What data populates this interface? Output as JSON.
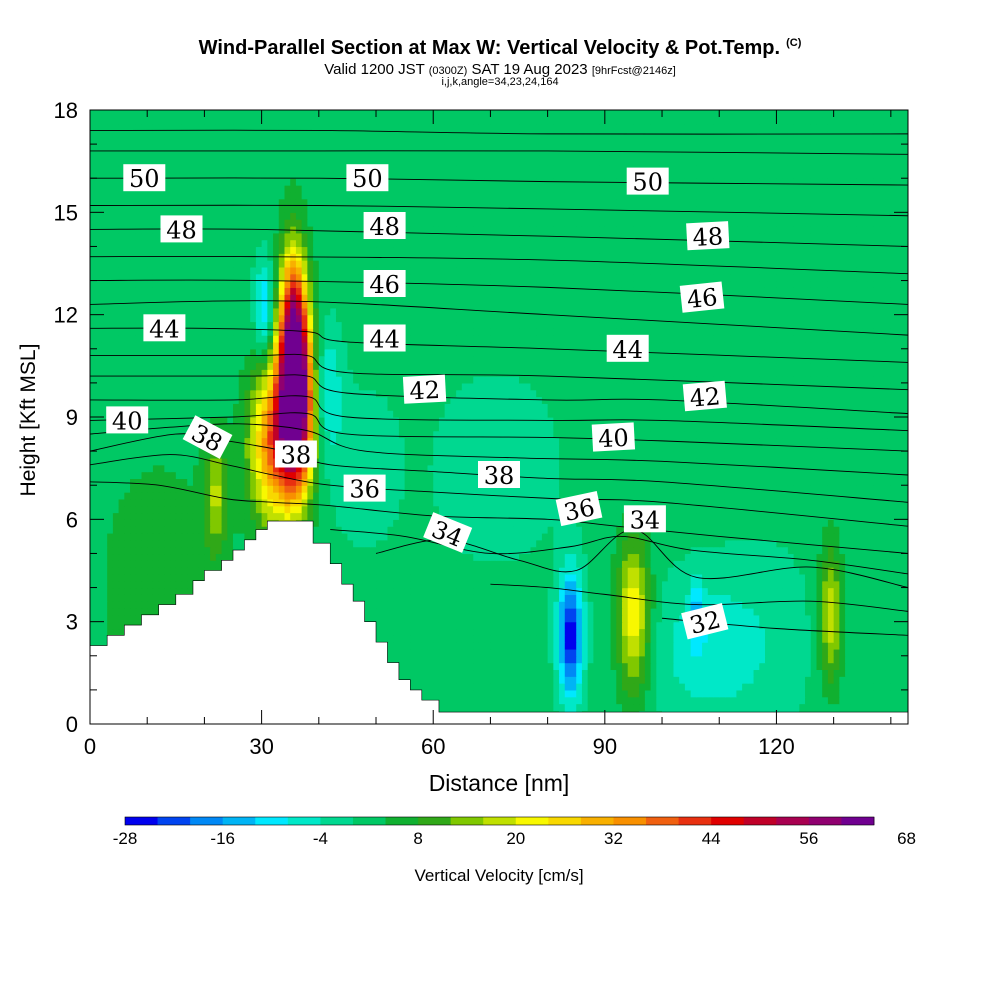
{
  "title": {
    "main": "Wind-Parallel Section at Max W: Vertical Velocity & Pot.Temp.",
    "copyright": "(C)",
    "valid_prefix": "Valid 1200 JST",
    "valid_zulu": "(0300Z)",
    "valid_date": "SAT 19 Aug 2023",
    "forecast": "[9hrFcst@2146z]",
    "params": "i,j,k,angle=34,23,24,164"
  },
  "chart_data": {
    "type": "heatmap",
    "xlabel": "Distance [nm]",
    "ylabel": "Height [Kft MSL]",
    "xlim": [
      0,
      143
    ],
    "ylim": [
      0,
      18
    ],
    "x_ticks": [
      "0",
      "30",
      "60",
      "90",
      "120"
    ],
    "y_ticks": [
      "0",
      "3",
      "6",
      "9",
      "12",
      "15",
      "18"
    ],
    "colorbar": {
      "label": "Vertical Velocity [cm/s]",
      "tick_labels": [
        "-28",
        "-16",
        "-4",
        "8",
        "20",
        "32",
        "44",
        "56",
        "68"
      ],
      "colors": [
        "#0000ee",
        "#0044f0",
        "#0088f5",
        "#00b4f5",
        "#00e8ff",
        "#00e8c8",
        "#00d890",
        "#00c864",
        "#10b030",
        "#30a818",
        "#80c800",
        "#c0e000",
        "#f8f800",
        "#f8d800",
        "#f8b000",
        "#f89000",
        "#f06010",
        "#e83010",
        "#e00000",
        "#c00028",
        "#a80050",
        "#900070",
        "#700090"
      ]
    },
    "terrain_profile": [
      [
        0,
        2.3
      ],
      [
        3,
        2.3
      ],
      [
        3,
        2.6
      ],
      [
        6,
        2.6
      ],
      [
        6,
        2.9
      ],
      [
        9,
        2.9
      ],
      [
        9,
        3.2
      ],
      [
        12,
        3.2
      ],
      [
        12,
        3.5
      ],
      [
        15,
        3.5
      ],
      [
        15,
        3.8
      ],
      [
        18,
        3.8
      ],
      [
        18,
        4.2
      ],
      [
        20,
        4.2
      ],
      [
        20,
        4.5
      ],
      [
        23,
        4.5
      ],
      [
        23,
        4.8
      ],
      [
        25,
        4.8
      ],
      [
        25,
        5.1
      ],
      [
        27,
        5.1
      ],
      [
        27,
        5.4
      ],
      [
        29,
        5.4
      ],
      [
        29,
        5.7
      ],
      [
        31,
        5.7
      ],
      [
        31,
        5.95
      ],
      [
        39,
        5.95
      ],
      [
        39,
        5.3
      ],
      [
        42,
        5.3
      ],
      [
        42,
        4.7
      ],
      [
        44,
        4.7
      ],
      [
        44,
        4.1
      ],
      [
        46,
        4.1
      ],
      [
        46,
        3.6
      ],
      [
        48,
        3.6
      ],
      [
        48,
        3.0
      ],
      [
        50,
        3.0
      ],
      [
        50,
        2.4
      ],
      [
        52,
        2.4
      ],
      [
        52,
        1.8
      ],
      [
        54,
        1.8
      ],
      [
        54,
        1.3
      ],
      [
        56,
        1.3
      ],
      [
        56,
        1.0
      ],
      [
        58,
        1.0
      ],
      [
        58,
        0.7
      ],
      [
        61,
        0.7
      ],
      [
        61,
        0.35
      ],
      [
        65,
        0.35
      ],
      [
        65,
        0.35
      ],
      [
        143,
        0.35
      ]
    ],
    "vertical_velocity_features": [
      {
        "x": 36,
        "y": 9.5,
        "sx": 2.2,
        "sy": 1.8,
        "w": 70
      },
      {
        "x": 35.5,
        "y": 12,
        "sx": 1.6,
        "sy": 1.5,
        "w": 36
      },
      {
        "x": 32,
        "y": 8.2,
        "sx": 3.0,
        "sy": 1.6,
        "w": 32
      },
      {
        "x": 22,
        "y": 6.7,
        "sx": 1.5,
        "sy": 1.2,
        "w": 14
      },
      {
        "x": 30.5,
        "y": 12.2,
        "sx": 1.2,
        "sy": 1.0,
        "w": -14
      },
      {
        "x": 41,
        "y": 9.8,
        "sx": 2.0,
        "sy": 1.3,
        "w": -12
      },
      {
        "x": 48,
        "y": 7.5,
        "sx": 4.0,
        "sy": 1.5,
        "w": -5
      },
      {
        "x": 84,
        "y": 2.6,
        "sx": 1.5,
        "sy": 1.3,
        "w": -28
      },
      {
        "x": 95,
        "y": 3.2,
        "sx": 2.0,
        "sy": 1.6,
        "w": 22
      },
      {
        "x": 107,
        "y": 2.2,
        "sx": 6.0,
        "sy": 1.5,
        "w": -8
      },
      {
        "x": 106,
        "y": 3.3,
        "sx": 0.8,
        "sy": 0.6,
        "w": -12
      },
      {
        "x": 129.5,
        "y": 3.2,
        "sx": 1.4,
        "sy": 1.4,
        "w": 18
      },
      {
        "x": 71,
        "y": 7.5,
        "sx": 8.0,
        "sy": 2.0,
        "w": -4
      },
      {
        "x": 118,
        "y": 2.5,
        "sx": 6.0,
        "sy": 2.0,
        "w": -4
      },
      {
        "x": 12,
        "y": 4.0,
        "sx": 8.0,
        "sy": 3.0,
        "w": 5
      }
    ],
    "potential_temperature_labels": [
      {
        "text": "50",
        "x": 9.5,
        "y": 16.0,
        "angle": 0
      },
      {
        "text": "50",
        "x": 48.5,
        "y": 16.0,
        "angle": 0
      },
      {
        "text": "50",
        "x": 97.5,
        "y": 15.9,
        "angle": 0
      },
      {
        "text": "48",
        "x": 16,
        "y": 14.5,
        "angle": 0
      },
      {
        "text": "48",
        "x": 51.5,
        "y": 14.6,
        "angle": 0
      },
      {
        "text": "48",
        "x": 108,
        "y": 14.3,
        "angle": -3
      },
      {
        "text": "46",
        "x": 51.5,
        "y": 12.9,
        "angle": 0
      },
      {
        "text": "46",
        "x": 107,
        "y": 12.5,
        "angle": -6
      },
      {
        "text": "44",
        "x": 13,
        "y": 11.6,
        "angle": 0
      },
      {
        "text": "44",
        "x": 51.5,
        "y": 11.3,
        "angle": 0
      },
      {
        "text": "44",
        "x": 94,
        "y": 11.0,
        "angle": 0
      },
      {
        "text": "42",
        "x": 58.5,
        "y": 9.8,
        "angle": -3
      },
      {
        "text": "42",
        "x": 107.5,
        "y": 9.6,
        "angle": -5
      },
      {
        "text": "40",
        "x": 6.5,
        "y": 8.9,
        "angle": 0
      },
      {
        "text": "40",
        "x": 91.5,
        "y": 8.4,
        "angle": -3
      },
      {
        "text": "38",
        "x": 20.5,
        "y": 8.4,
        "angle": 28
      },
      {
        "text": "38",
        "x": 36,
        "y": 7.9,
        "angle": 0
      },
      {
        "text": "38",
        "x": 71.5,
        "y": 7.3,
        "angle": 0
      },
      {
        "text": "36",
        "x": 48,
        "y": 6.9,
        "angle": 0
      },
      {
        "text": "36",
        "x": 85.5,
        "y": 6.3,
        "angle": -12
      },
      {
        "text": "34",
        "x": 62.5,
        "y": 5.6,
        "angle": 22
      },
      {
        "text": "34",
        "x": 97,
        "y": 6.0,
        "angle": 0
      },
      {
        "text": "32",
        "x": 107.5,
        "y": 3.0,
        "angle": -14
      }
    ],
    "potential_temperature_contours": [
      {
        "level": 52,
        "points": [
          [
            0,
            17.4
          ],
          [
            40,
            17.4
          ],
          [
            80,
            17.3
          ],
          [
            143,
            17.3
          ]
        ]
      },
      {
        "level": 51,
        "points": [
          [
            0,
            16.8
          ],
          [
            40,
            16.8
          ],
          [
            80,
            16.8
          ],
          [
            143,
            16.7
          ]
        ]
      },
      {
        "level": 50,
        "points": [
          [
            0,
            16.0
          ],
          [
            40,
            16.0
          ],
          [
            80,
            15.9
          ],
          [
            143,
            15.8
          ]
        ]
      },
      {
        "level": 49,
        "points": [
          [
            0,
            15.2
          ],
          [
            40,
            15.2
          ],
          [
            80,
            15.1
          ],
          [
            143,
            14.9
          ]
        ]
      },
      {
        "level": 48,
        "points": [
          [
            0,
            14.5
          ],
          [
            30,
            14.5
          ],
          [
            80,
            14.3
          ],
          [
            143,
            14.0
          ]
        ]
      },
      {
        "level": 47,
        "points": [
          [
            0,
            13.7
          ],
          [
            30,
            13.7
          ],
          [
            80,
            13.6
          ],
          [
            143,
            13.2
          ]
        ]
      },
      {
        "level": 46,
        "points": [
          [
            0,
            13.0
          ],
          [
            30,
            13.0
          ],
          [
            80,
            12.8
          ],
          [
            143,
            12.3
          ]
        ]
      },
      {
        "level": 45,
        "points": [
          [
            0,
            12.3
          ],
          [
            35,
            12.4
          ],
          [
            80,
            12.0
          ],
          [
            143,
            11.4
          ]
        ]
      },
      {
        "level": 44,
        "points": [
          [
            0,
            11.6
          ],
          [
            20,
            11.6
          ],
          [
            38,
            11.5
          ],
          [
            45,
            11.2
          ],
          [
            80,
            11.0
          ],
          [
            143,
            10.6
          ]
        ]
      },
      {
        "level": 43,
        "points": [
          [
            0,
            10.8
          ],
          [
            28,
            10.8
          ],
          [
            38,
            10.8
          ],
          [
            45,
            10.3
          ],
          [
            80,
            10.2
          ],
          [
            143,
            9.8
          ]
        ]
      },
      {
        "level": 42,
        "points": [
          [
            0,
            10.2
          ],
          [
            28,
            10.2
          ],
          [
            38,
            10.2
          ],
          [
            45,
            9.7
          ],
          [
            80,
            9.5
          ],
          [
            100,
            9.5
          ],
          [
            143,
            9.1
          ]
        ]
      },
      {
        "level": 41,
        "points": [
          [
            0,
            9.5
          ],
          [
            25,
            9.5
          ],
          [
            38,
            9.6
          ],
          [
            45,
            9.0
          ],
          [
            80,
            8.9
          ],
          [
            100,
            8.9
          ],
          [
            143,
            8.6
          ]
        ]
      },
      {
        "level": 40,
        "points": [
          [
            0,
            8.9
          ],
          [
            25,
            9.0
          ],
          [
            38,
            9.1
          ],
          [
            45,
            8.5
          ],
          [
            80,
            8.4
          ],
          [
            100,
            8.3
          ],
          [
            143,
            8.0
          ]
        ]
      },
      {
        "level": 39,
        "points": [
          [
            0,
            8.5
          ],
          [
            14,
            8.7
          ],
          [
            26,
            8.8
          ],
          [
            38,
            8.6
          ],
          [
            48,
            8.0
          ],
          [
            75,
            7.8
          ],
          [
            100,
            7.7
          ],
          [
            143,
            7.3
          ]
        ]
      },
      {
        "level": 38,
        "points": [
          [
            0,
            8.0
          ],
          [
            15,
            8.5
          ],
          [
            24,
            8.3
          ],
          [
            34,
            8.0
          ],
          [
            42,
            7.6
          ],
          [
            60,
            7.4
          ],
          [
            80,
            7.2
          ],
          [
            100,
            7.1
          ],
          [
            143,
            6.5
          ]
        ]
      },
      {
        "level": 37,
        "points": [
          [
            0,
            7.6
          ],
          [
            14,
            7.9
          ],
          [
            24,
            7.6
          ],
          [
            32,
            7.3
          ],
          [
            42,
            7.0
          ],
          [
            60,
            6.8
          ],
          [
            82,
            6.6
          ],
          [
            100,
            6.5
          ],
          [
            143,
            5.8
          ]
        ]
      },
      {
        "level": 36,
        "points": [
          [
            0,
            7.1
          ],
          [
            12,
            7.0
          ],
          [
            24,
            6.6
          ],
          [
            32,
            6.5
          ],
          [
            42,
            6.4
          ],
          [
            60,
            6.1
          ],
          [
            80,
            6.0
          ],
          [
            92,
            5.8
          ],
          [
            110,
            5.5
          ],
          [
            143,
            5.0
          ]
        ]
      },
      {
        "level": 35,
        "points": [
          [
            42,
            5.7
          ],
          [
            55,
            5.5
          ],
          [
            70,
            5.0
          ],
          [
            84,
            5.2
          ],
          [
            93,
            5.5
          ],
          [
            105,
            5.1
          ],
          [
            126,
            4.8
          ],
          [
            143,
            4.4
          ]
        ]
      },
      {
        "level": 34,
        "points": [
          [
            50,
            5.0
          ],
          [
            62,
            5.4
          ],
          [
            75,
            4.8
          ],
          [
            85,
            4.5
          ],
          [
            95,
            5.7
          ],
          [
            106,
            4.3
          ],
          [
            126,
            4.6
          ],
          [
            143,
            4.0
          ]
        ]
      },
      {
        "level": 33,
        "points": [
          [
            70,
            4.1
          ],
          [
            80,
            4.0
          ],
          [
            90,
            3.8
          ],
          [
            106,
            3.5
          ],
          [
            126,
            3.6
          ],
          [
            143,
            3.3
          ]
        ]
      },
      {
        "level": 32,
        "points": [
          [
            100,
            3.1
          ],
          [
            120,
            2.8
          ],
          [
            143,
            2.6
          ]
        ]
      }
    ]
  }
}
